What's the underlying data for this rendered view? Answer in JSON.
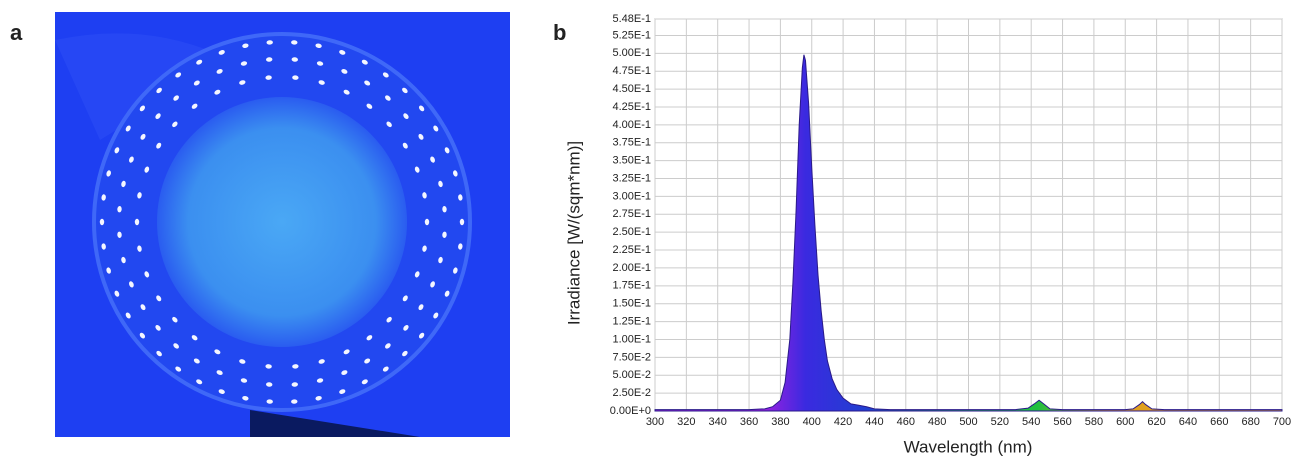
{
  "figure": {
    "panel_a_label": "a",
    "panel_b_label": "b"
  },
  "chart_data": {
    "type": "area",
    "x_label": "Wavelength (nm)",
    "y_label": "Irradiance [W/(sqm*nm)]",
    "x": [
      300,
      340,
      360,
      370,
      375,
      380,
      383,
      386,
      388,
      390,
      392,
      394,
      395,
      396,
      398,
      400,
      402,
      404,
      406,
      408,
      410,
      413,
      416,
      420,
      425,
      430,
      435,
      440,
      450,
      480,
      500,
      530,
      538,
      542,
      545,
      548,
      552,
      560,
      580,
      600,
      605,
      609,
      611,
      613,
      617,
      625,
      650,
      700
    ],
    "values": [
      0.002,
      0.002,
      0.002,
      0.003,
      0.006,
      0.015,
      0.04,
      0.1,
      0.18,
      0.28,
      0.4,
      0.48,
      0.498,
      0.49,
      0.43,
      0.34,
      0.26,
      0.19,
      0.14,
      0.1,
      0.07,
      0.045,
      0.03,
      0.018,
      0.01,
      0.008,
      0.006,
      0.003,
      0.002,
      0.002,
      0.002,
      0.002,
      0.004,
      0.01,
      0.015,
      0.01,
      0.003,
      0.002,
      0.002,
      0.002,
      0.003,
      0.009,
      0.013,
      0.009,
      0.003,
      0.002,
      0.002,
      0.002
    ],
    "color": "#2a1a8a",
    "xlim": [
      300,
      700
    ],
    "xticks": [
      300,
      320,
      340,
      360,
      380,
      400,
      420,
      440,
      460,
      480,
      500,
      520,
      540,
      560,
      580,
      600,
      620,
      640,
      660,
      680,
      700
    ],
    "ylim": [
      0,
      0.548
    ],
    "yticks": [
      {
        "value": 0,
        "label": "0.00E+0"
      },
      {
        "value": 0.025,
        "label": "2.50E-2"
      },
      {
        "value": 0.05,
        "label": "5.00E-2"
      },
      {
        "value": 0.075,
        "label": "7.50E-2"
      },
      {
        "value": 0.1,
        "label": "1.00E-1"
      },
      {
        "value": 0.125,
        "label": "1.25E-1"
      },
      {
        "value": 0.15,
        "label": "1.50E-1"
      },
      {
        "value": 0.175,
        "label": "1.75E-1"
      },
      {
        "value": 0.2,
        "label": "2.00E-1"
      },
      {
        "value": 0.225,
        "label": "2.25E-1"
      },
      {
        "value": 0.25,
        "label": "2.50E-1"
      },
      {
        "value": 0.275,
        "label": "2.75E-1"
      },
      {
        "value": 0.3,
        "label": "3.00E-1"
      },
      {
        "value": 0.325,
        "label": "3.25E-1"
      },
      {
        "value": 0.35,
        "label": "3.50E-1"
      },
      {
        "value": 0.375,
        "label": "3.75E-1"
      },
      {
        "value": 0.4,
        "label": "4.00E-1"
      },
      {
        "value": 0.425,
        "label": "4.25E-1"
      },
      {
        "value": 0.45,
        "label": "4.50E-1"
      },
      {
        "value": 0.475,
        "label": "4.75E-1"
      },
      {
        "value": 0.5,
        "label": "5.00E-1"
      },
      {
        "value": 0.525,
        "label": "5.25E-1"
      },
      {
        "value": 0.548,
        "label": "5.48E-1"
      }
    ],
    "grid": true
  }
}
